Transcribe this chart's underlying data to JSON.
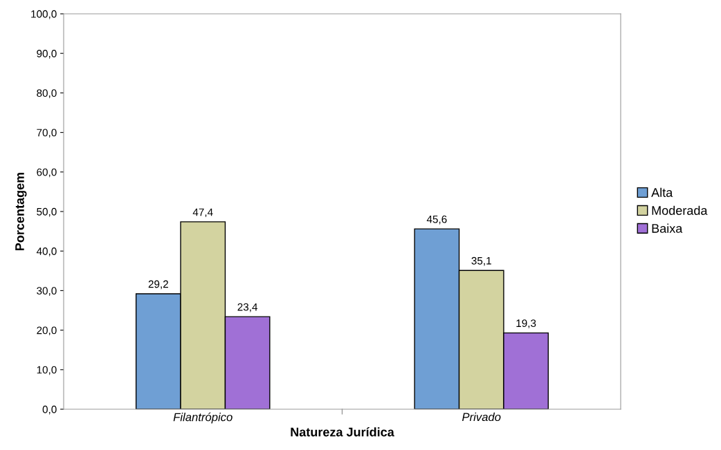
{
  "chart_data": {
    "type": "bar",
    "xlabel": "Natureza Jurídica",
    "ylabel": "Porcentagem",
    "categories": [
      "Filantrópico",
      "Privado"
    ],
    "series": [
      {
        "name": "Alta",
        "color": "#6f9fd4",
        "values": [
          29.2,
          45.6
        ],
        "value_labels": [
          "29,2",
          "45,6"
        ]
      },
      {
        "name": "Moderada",
        "color": "#d3d3a0",
        "values": [
          47.4,
          35.1
        ],
        "value_labels": [
          "47,4",
          "35,1"
        ]
      },
      {
        "name": "Baixa",
        "color": "#a070d6",
        "values": [
          23.4,
          19.3
        ],
        "value_labels": [
          "23,4",
          "19,3"
        ]
      }
    ],
    "ylim": [
      0,
      100
    ],
    "yticks": [
      {
        "value": 0,
        "label": "0,0"
      },
      {
        "value": 10,
        "label": "10,0"
      },
      {
        "value": 20,
        "label": "20,0"
      },
      {
        "value": 30,
        "label": "30,0"
      },
      {
        "value": 40,
        "label": "40,0"
      },
      {
        "value": 50,
        "label": "50,0"
      },
      {
        "value": 60,
        "label": "60,0"
      },
      {
        "value": 70,
        "label": "70,0"
      },
      {
        "value": 80,
        "label": "80,0"
      },
      {
        "value": 90,
        "label": "90,0"
      },
      {
        "value": 100,
        "label": "100,0"
      }
    ],
    "grid": false,
    "legend": "right"
  }
}
